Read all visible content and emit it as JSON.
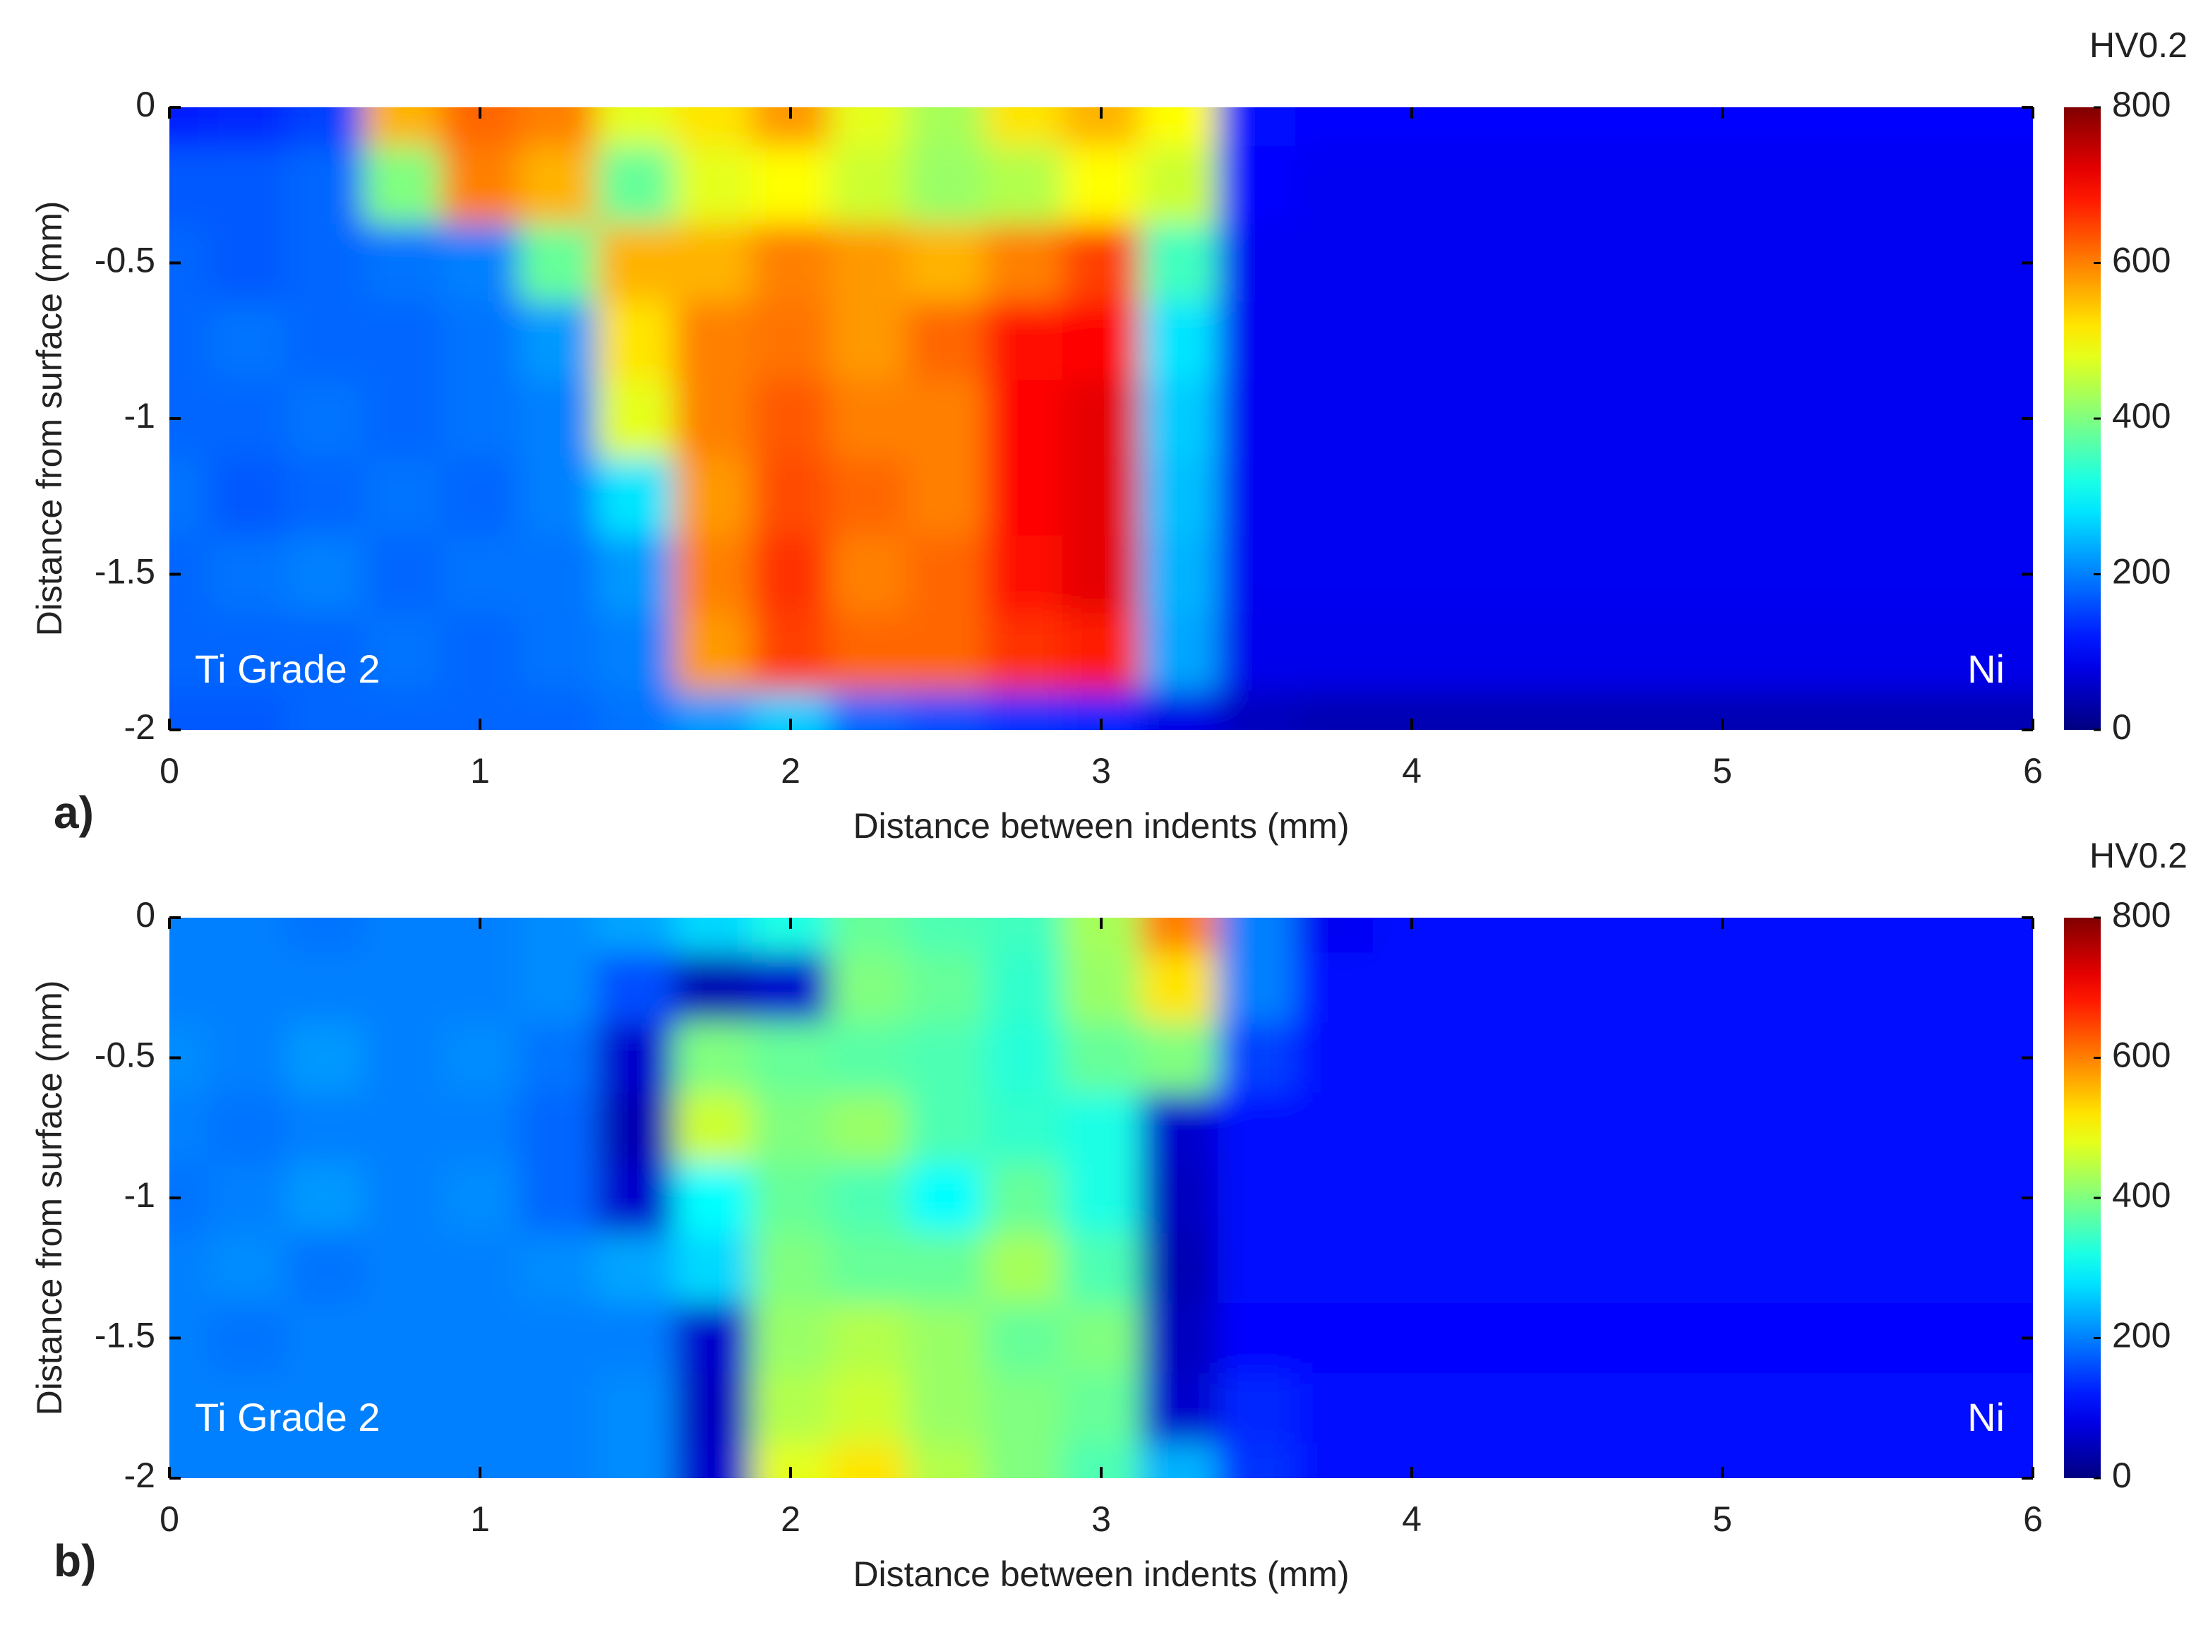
{
  "chart_data": [
    {
      "type": "heatmap",
      "panel_label": "a)",
      "xlabel": "Distance between indents (mm)",
      "ylabel": "Distance from surface (mm)",
      "annotations": [
        "Ti Grade 2",
        "Ni"
      ],
      "x": [
        0,
        0.25,
        0.5,
        0.75,
        1,
        1.25,
        1.5,
        1.75,
        2,
        2.25,
        2.5,
        2.75,
        3,
        3.25,
        3.5,
        3.75,
        4,
        4.25,
        4.5,
        4.75,
        5,
        5.25,
        5.5,
        5.75,
        6
      ],
      "y": [
        0,
        -0.25,
        -0.5,
        -0.75,
        -1,
        -1.25,
        -1.5,
        -1.75,
        -2
      ],
      "values": [
        [
          120,
          130,
          150,
          560,
          620,
          600,
          480,
          520,
          580,
          480,
          430,
          520,
          560,
          500,
          110,
          100,
          100,
          100,
          100,
          100,
          100,
          100,
          100,
          100,
          100
        ],
        [
          170,
          170,
          180,
          400,
          600,
          560,
          380,
          480,
          500,
          460,
          420,
          440,
          500,
          460,
          100,
          90,
          90,
          90,
          90,
          90,
          90,
          90,
          90,
          90,
          90
        ],
        [
          180,
          170,
          180,
          190,
          200,
          380,
          560,
          560,
          600,
          580,
          560,
          600,
          650,
          350,
          90,
          90,
          90,
          90,
          90,
          90,
          90,
          90,
          90,
          90,
          90
        ],
        [
          180,
          190,
          180,
          180,
          190,
          220,
          520,
          600,
          610,
          580,
          620,
          690,
          700,
          280,
          90,
          90,
          90,
          90,
          90,
          90,
          90,
          90,
          90,
          90,
          90
        ],
        [
          180,
          180,
          190,
          180,
          190,
          200,
          480,
          600,
          630,
          600,
          600,
          700,
          720,
          260,
          90,
          90,
          90,
          90,
          90,
          90,
          90,
          90,
          90,
          90,
          90
        ],
        [
          190,
          170,
          180,
          190,
          180,
          200,
          280,
          580,
          640,
          620,
          600,
          700,
          720,
          250,
          90,
          90,
          90,
          90,
          90,
          90,
          90,
          90,
          90,
          90,
          90
        ],
        [
          180,
          190,
          200,
          180,
          190,
          190,
          220,
          600,
          660,
          600,
          620,
          690,
          720,
          240,
          90,
          90,
          90,
          90,
          90,
          90,
          90,
          90,
          90,
          90,
          90
        ],
        [
          180,
          180,
          180,
          190,
          180,
          190,
          200,
          580,
          650,
          620,
          620,
          660,
          680,
          230,
          85,
          85,
          85,
          85,
          85,
          85,
          85,
          85,
          85,
          85,
          85
        ],
        [
          170,
          170,
          180,
          180,
          180,
          180,
          190,
          220,
          260,
          180,
          160,
          140,
          130,
          80,
          50,
          40,
          40,
          40,
          40,
          40,
          40,
          40,
          40,
          40,
          40
        ]
      ],
      "xlim": [
        0,
        6
      ],
      "ylim": [
        -2,
        0
      ],
      "xticks": [
        0,
        1,
        2,
        3,
        4,
        5,
        6
      ],
      "yticks": [
        0,
        -0.5,
        -1,
        -1.5,
        -2
      ],
      "colorbar": {
        "label": "HV0.2",
        "lim": [
          0,
          800
        ],
        "ticks": [
          0,
          200,
          400,
          600,
          800
        ],
        "colormap": "jet"
      }
    },
    {
      "type": "heatmap",
      "panel_label": "b)",
      "xlabel": "Distance between indents (mm)",
      "ylabel": "Distance from surface (mm)",
      "annotations": [
        "Ti Grade 2",
        "Ni"
      ],
      "x": [
        0,
        0.25,
        0.5,
        0.75,
        1,
        1.25,
        1.5,
        1.75,
        2,
        2.25,
        2.5,
        2.75,
        3,
        3.25,
        3.5,
        3.75,
        4,
        4.25,
        4.5,
        4.75,
        5,
        5.25,
        5.5,
        5.75,
        6
      ],
      "y": [
        0,
        -0.25,
        -0.5,
        -0.75,
        -1,
        -1.25,
        -1.5,
        -1.75,
        -2
      ],
      "values": [
        [
          200,
          200,
          190,
          200,
          200,
          210,
          230,
          270,
          320,
          380,
          360,
          350,
          430,
          600,
          200,
          90,
          110,
          110,
          110,
          110,
          110,
          110,
          110,
          110,
          110
        ],
        [
          200,
          200,
          200,
          200,
          200,
          210,
          160,
          40,
          60,
          400,
          380,
          340,
          420,
          520,
          200,
          110,
          110,
          110,
          110,
          110,
          110,
          110,
          110,
          110,
          110
        ],
        [
          210,
          200,
          220,
          200,
          210,
          190,
          60,
          400,
          380,
          370,
          360,
          330,
          380,
          400,
          150,
          110,
          110,
          110,
          110,
          110,
          110,
          110,
          110,
          110,
          110
        ],
        [
          200,
          190,
          200,
          200,
          200,
          180,
          40,
          460,
          400,
          420,
          360,
          340,
          320,
          60,
          110,
          110,
          110,
          110,
          110,
          110,
          110,
          110,
          110,
          110,
          110
        ],
        [
          190,
          200,
          220,
          200,
          210,
          180,
          60,
          300,
          380,
          360,
          300,
          380,
          320,
          50,
          110,
          110,
          110,
          110,
          110,
          110,
          110,
          110,
          110,
          110,
          110
        ],
        [
          200,
          210,
          190,
          200,
          200,
          210,
          230,
          270,
          400,
          380,
          380,
          430,
          360,
          40,
          110,
          110,
          110,
          110,
          110,
          110,
          110,
          110,
          110,
          110,
          110
        ],
        [
          200,
          190,
          200,
          200,
          200,
          200,
          200,
          60,
          420,
          440,
          420,
          380,
          400,
          50,
          100,
          100,
          100,
          100,
          100,
          100,
          100,
          100,
          100,
          100,
          100
        ],
        [
          200,
          200,
          200,
          200,
          200,
          200,
          210,
          50,
          440,
          460,
          420,
          400,
          380,
          60,
          130,
          110,
          110,
          110,
          110,
          110,
          110,
          110,
          110,
          110,
          110
        ],
        [
          200,
          200,
          200,
          200,
          200,
          200,
          210,
          60,
          480,
          520,
          440,
          400,
          360,
          240,
          140,
          110,
          110,
          110,
          110,
          110,
          110,
          110,
          110,
          110,
          110
        ]
      ],
      "xlim": [
        0,
        6
      ],
      "ylim": [
        -2,
        0
      ],
      "xticks": [
        0,
        1,
        2,
        3,
        4,
        5,
        6
      ],
      "yticks": [
        0,
        -0.5,
        -1,
        -1.5,
        -2
      ],
      "colorbar": {
        "label": "HV0.2",
        "lim": [
          0,
          800
        ],
        "ticks": [
          0,
          200,
          400,
          600,
          800
        ],
        "colormap": "jet"
      }
    }
  ]
}
